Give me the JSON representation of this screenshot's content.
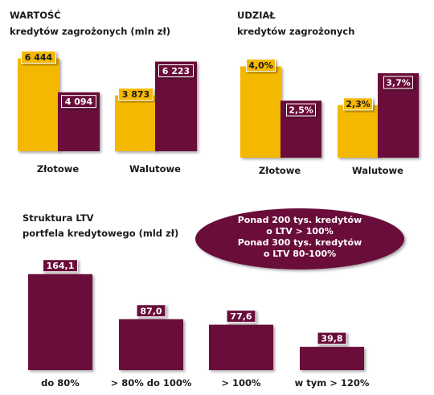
{
  "colors": {
    "gold": "#F5B800",
    "maroon": "#6B0F3A",
    "dark_text": "#1a1a1a",
    "label_on_maroon": "#ffffff"
  },
  "chart_data": [
    {
      "type": "bar",
      "title": "WARTOŚĆ",
      "subtitle": "kredytów zagrożonych  (mln zł)",
      "categories": [
        "Złotowe",
        "Walutowe"
      ],
      "series": [
        {
          "values": [
            6444,
            3873
          ],
          "labels": [
            "6 444",
            "3 873"
          ],
          "color": "gold"
        },
        {
          "values": [
            4094,
            6223
          ],
          "labels": [
            "4 094",
            "6 223"
          ],
          "color": "maroon"
        }
      ],
      "ylim": [
        0,
        6700
      ],
      "grid": false
    },
    {
      "type": "bar",
      "title": "UDZIAŁ",
      "subtitle": "kredytów zagrożonych",
      "categories": [
        "Złotowe",
        "Walutowe"
      ],
      "series": [
        {
          "values": [
            4.0,
            2.3
          ],
          "labels": [
            "4,0%",
            "2,3%"
          ],
          "color": "gold"
        },
        {
          "values": [
            2.5,
            3.7
          ],
          "labels": [
            "2,5%",
            "3,7%"
          ],
          "color": "maroon"
        }
      ],
      "ylim": [
        0,
        4.3
      ],
      "grid": false
    },
    {
      "type": "bar",
      "title": "Struktura LTV",
      "subtitle": "portfela kredytowego  (mld zł)",
      "categories": [
        "do 80%",
        "> 80% do 100%",
        "> 100%",
        "w tym > 120%"
      ],
      "series": [
        {
          "values": [
            164.1,
            87.0,
            77.6,
            39.8
          ],
          "labels": [
            "164,1",
            "87,0",
            "77,6",
            "39,8"
          ],
          "color": "maroon"
        }
      ],
      "ylim": [
        0,
        172
      ],
      "grid": false
    }
  ],
  "callout": {
    "lines": [
      "Ponad  200 tys. kredytów",
      "o LTV  > 100%",
      "Ponad  300 tys. kredytów",
      "o LTV  80-100%"
    ]
  }
}
